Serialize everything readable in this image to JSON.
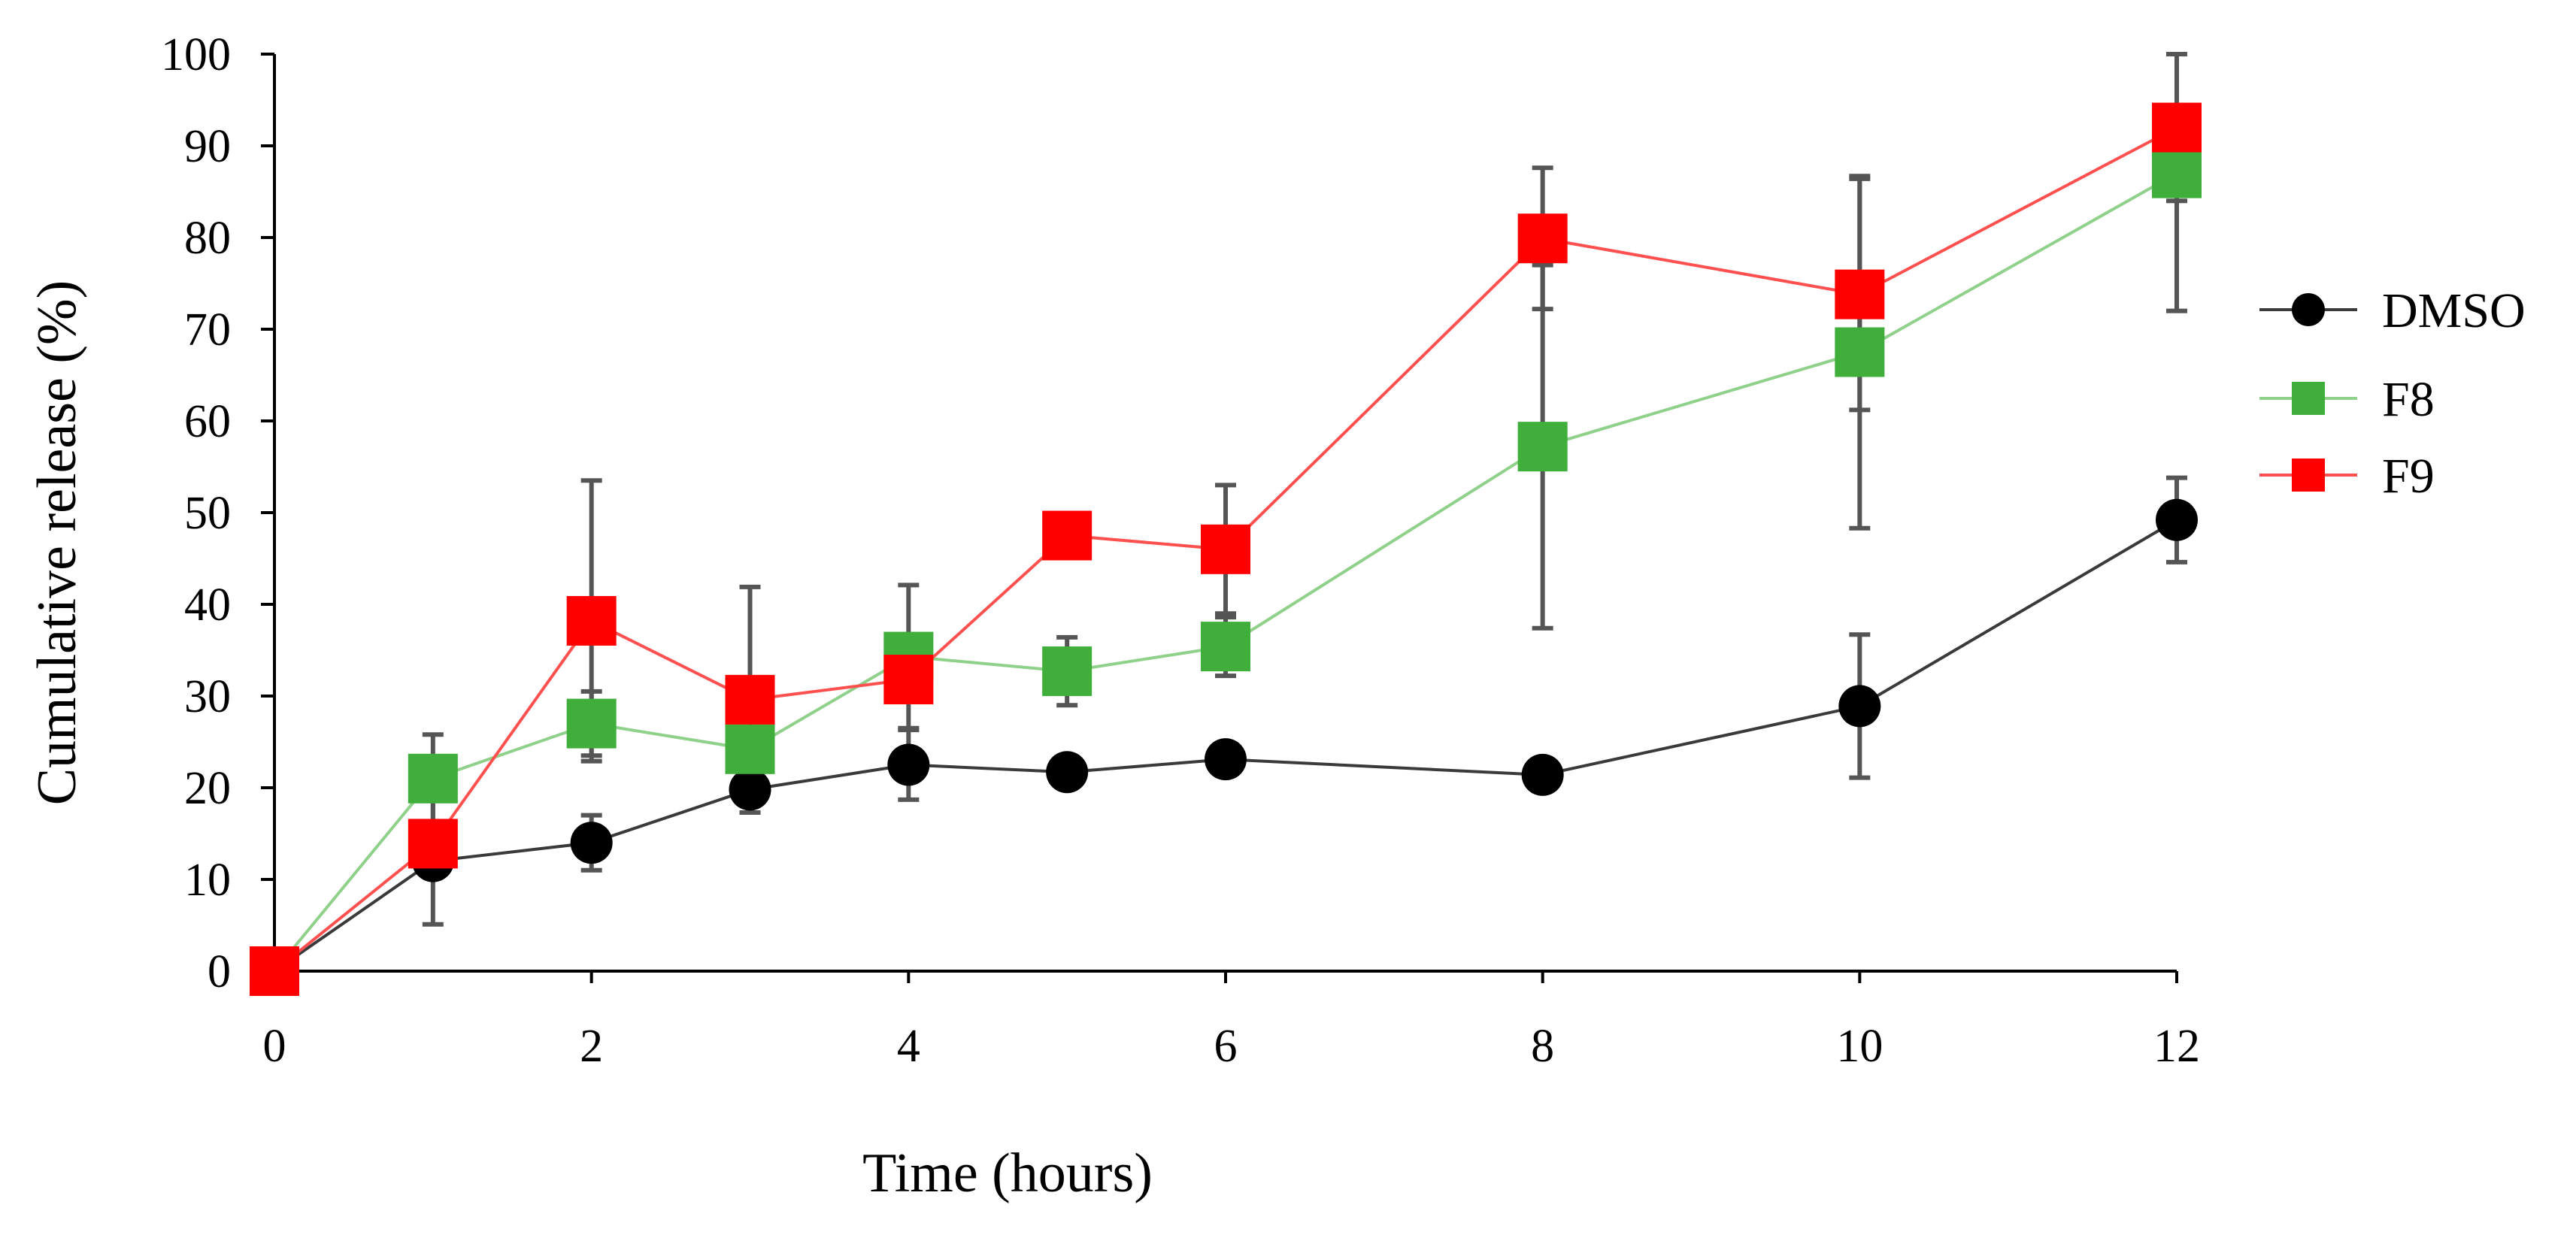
{
  "chart_data": {
    "type": "line",
    "title": "",
    "xlabel": "Time (hours)",
    "ylabel": "Cumulative release (%)",
    "xlim": [
      0,
      12
    ],
    "ylim": [
      0,
      100
    ],
    "x_ticks": [
      0,
      2,
      4,
      6,
      8,
      10,
      12
    ],
    "y_ticks": [
      0,
      10,
      20,
      30,
      40,
      50,
      60,
      70,
      80,
      90,
      100
    ],
    "grid": false,
    "legend_position": "right",
    "series": [
      {
        "name": "DMSO",
        "color": "#000000",
        "line_color": "#3a3a3a",
        "marker": "circle",
        "x": [
          0,
          1,
          2,
          3,
          4,
          5,
          6,
          8,
          10,
          12
        ],
        "y": [
          0,
          12,
          14,
          19.8,
          22.5,
          21.7,
          23.1,
          21.4,
          28.9,
          49.2
        ],
        "y_err": [
          0,
          0,
          3,
          2.5,
          3.8,
          0,
          0,
          0,
          7.8,
          4.6
        ]
      },
      {
        "name": "F8",
        "color": "#3fae3a",
        "line_color": "#8fd18a",
        "marker": "square",
        "x": [
          0,
          1,
          2,
          3,
          4,
          5,
          6,
          8,
          10,
          12
        ],
        "y": [
          0,
          21,
          27,
          24.2,
          34.3,
          32.7,
          35.4,
          57.2,
          67.5,
          87
        ],
        "y_err": [
          0,
          4.8,
          3.5,
          0,
          7.8,
          3.7,
          3.2,
          19.8,
          19.2,
          15
        ]
      },
      {
        "name": "F9",
        "color": "#ff0000",
        "line_color": "#ff5050",
        "marker": "square",
        "x": [
          0,
          1,
          2,
          3,
          4,
          5,
          6,
          8,
          10,
          12
        ],
        "y": [
          0,
          13.9,
          38.2,
          29.6,
          31.8,
          47.5,
          46,
          79.9,
          73.8,
          92
        ],
        "y_err": [
          0,
          8.8,
          15.3,
          12.3,
          0,
          0,
          7,
          7.7,
          12.6,
          8
        ]
      }
    ]
  }
}
